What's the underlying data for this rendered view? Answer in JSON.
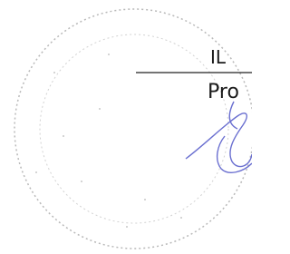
{
  "document": {
    "lines": [
      "IL",
      "Pro"
    ]
  }
}
